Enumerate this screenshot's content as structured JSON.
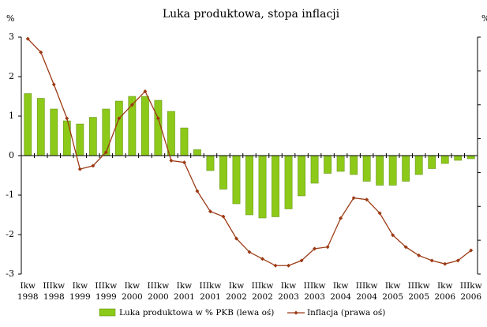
{
  "chart_data": {
    "type": "bar-line",
    "title": "Luka produktowa, stopa inflacji",
    "y_unit": "%",
    "y2_unit": "%",
    "categories": [
      "Ikw 1998",
      null,
      "IIIkw 1998",
      null,
      "Ikw 1999",
      null,
      "IIIkw 1999",
      null,
      "Ikw 2000",
      null,
      "IIIkw 2000",
      null,
      "Ikw 2001",
      null,
      "IIIkw 2001",
      null,
      "Ikw 2002",
      null,
      "IIIkw 2002",
      null,
      "Ikw 2003",
      null,
      "IIIkw 2003",
      null,
      "Ikw 2004",
      null,
      "IIIkw 2004",
      null,
      "Ikw 2005",
      null,
      "IIIkw 2005",
      null,
      "Ikw 2006",
      null,
      "IIIkw 2006"
    ],
    "series": [
      {
        "name": "Luka produktowa w % PKB (lewa oś)",
        "color": "#8cc919",
        "kind": "bar",
        "values": [
          1.57,
          1.45,
          1.18,
          0.88,
          0.8,
          0.97,
          1.18,
          1.38,
          1.5,
          1.5,
          1.4,
          1.12,
          0.7,
          0.15,
          -0.38,
          -0.85,
          -1.22,
          -1.5,
          -1.58,
          -1.55,
          -1.35,
          -1.02,
          -0.7,
          -0.45,
          -0.4,
          -0.48,
          -0.65,
          -0.75,
          -0.75,
          -0.65,
          -0.48,
          -0.33,
          -0.2,
          -0.12,
          -0.08
        ]
      },
      {
        "name": "Inflacja (prawa oś)",
        "color": "#9c3a14",
        "kind": "line",
        "axis": "y2",
        "values": [
          13.9,
          13.1,
          11.2,
          9.2,
          6.2,
          6.4,
          7.2,
          9.2,
          10.0,
          10.8,
          9.2,
          6.7,
          6.6,
          4.9,
          3.7,
          3.4,
          2.1,
          1.3,
          0.9,
          0.5,
          0.5,
          0.8,
          1.5,
          1.6,
          3.3,
          4.5,
          4.4,
          3.6,
          2.3,
          1.6,
          1.1,
          0.8,
          0.6,
          0.8,
          1.4
        ]
      }
    ],
    "ylim": [
      -3,
      3
    ],
    "yticks": [
      -3,
      -2,
      -1,
      0,
      1,
      2,
      3
    ],
    "y2lim": [
      0,
      14
    ],
    "y2ticks": [
      0,
      2,
      4,
      6,
      8,
      10,
      12,
      14
    ],
    "legend": "bottom"
  }
}
